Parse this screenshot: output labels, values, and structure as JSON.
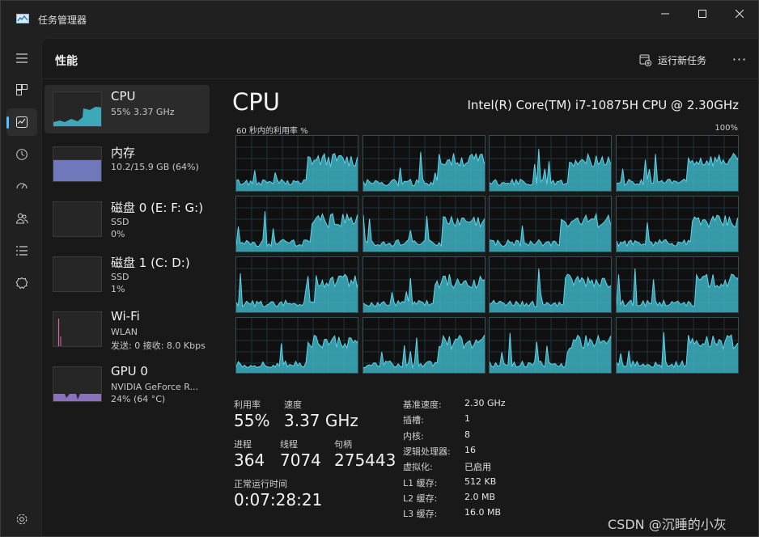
{
  "window": {
    "title": "任务管理器"
  },
  "header": {
    "page_title": "性能",
    "run_task_label": "运行新任务",
    "more_label": "···"
  },
  "rail": {
    "items": [
      {
        "name": "menu-icon"
      },
      {
        "name": "processes-icon"
      },
      {
        "name": "performance-icon",
        "active": true
      },
      {
        "name": "app-history-icon"
      },
      {
        "name": "startup-apps-icon"
      },
      {
        "name": "users-icon"
      },
      {
        "name": "details-icon"
      },
      {
        "name": "services-icon"
      },
      {
        "name": "settings-icon"
      }
    ]
  },
  "devices": [
    {
      "name": "CPU",
      "sub1": "55% 3.37 GHz",
      "sub2": "",
      "color": "#3fb8c9",
      "selected": true,
      "level": 0.55
    },
    {
      "name": "内存",
      "sub1": "10.2/15.9 GB (64%)",
      "sub2": "",
      "color": "#7b87d6",
      "selected": false,
      "level": 0.64
    },
    {
      "name": "磁盘 0 (E: F: G:)",
      "sub1": "SSD",
      "sub2": "0%",
      "color": "#58b848",
      "selected": false,
      "level": 0.0
    },
    {
      "name": "磁盘 1 (C: D:)",
      "sub1": "SSD",
      "sub2": "1%",
      "color": "#58b848",
      "selected": false,
      "level": 0.01
    },
    {
      "name": "Wi-Fi",
      "sub1": "WLAN",
      "sub2": "发送: 0 接收: 8.0 Kbps",
      "color": "#d46ba9",
      "selected": false,
      "level": 0.02
    },
    {
      "name": "GPU 0",
      "sub1": "NVIDIA GeForce R...",
      "sub2": "24% (64 °C)",
      "color": "#9c7fd8",
      "selected": false,
      "level": 0.24
    }
  ],
  "cpu": {
    "title": "CPU",
    "model": "Intel(R) Core(TM) i7-10875H CPU @ 2.30GHz",
    "graph_label": "60 秒内的利用率 %",
    "graph_max": "100%",
    "graph_color": "#3fb8c9",
    "stats": {
      "util_label": "利用率",
      "util_value": "55%",
      "speed_label": "速度",
      "speed_value": "3.37 GHz",
      "proc_label": "进程",
      "proc_value": "364",
      "threads_label": "线程",
      "threads_value": "7074",
      "handles_label": "句柄",
      "handles_value": "275443",
      "uptime_label": "正常运行时间",
      "uptime_value": "0:07:28:21"
    },
    "info": [
      {
        "k": "基准速度:",
        "v": "2.30 GHz"
      },
      {
        "k": "插槽:",
        "v": "1"
      },
      {
        "k": "内核:",
        "v": "8"
      },
      {
        "k": "逻辑处理器:",
        "v": "16"
      },
      {
        "k": "虚拟化:",
        "v": "已启用"
      },
      {
        "k": "L1 缓存:",
        "v": "512 KB"
      },
      {
        "k": "L2 缓存:",
        "v": "2.0 MB"
      },
      {
        "k": "L3 缓存:",
        "v": "16.0 MB"
      }
    ]
  },
  "watermark": "CSDN @沉睡的小灰"
}
